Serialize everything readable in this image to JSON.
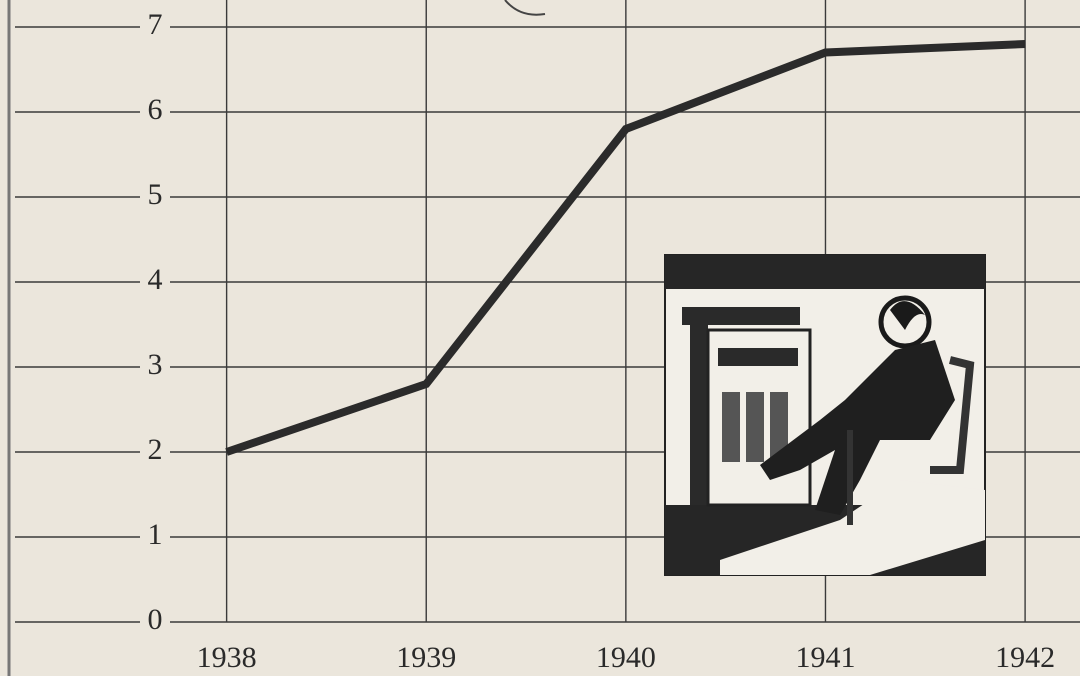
{
  "chart_data": {
    "type": "line",
    "x": [
      1938,
      1939,
      1940,
      1941,
      1942
    ],
    "xlim": [
      1937,
      1942.25
    ],
    "xticks": [
      1938,
      1939,
      1940,
      1941,
      1942
    ],
    "series": [
      {
        "color": "#2b2b2b",
        "values": [
          2.0,
          2.8,
          5.8,
          6.7,
          6.8
        ]
      }
    ],
    "ylim": [
      0,
      7
    ],
    "yticks": [
      0,
      1,
      2,
      3,
      4,
      5,
      6,
      7
    ],
    "grid": true
  }
}
